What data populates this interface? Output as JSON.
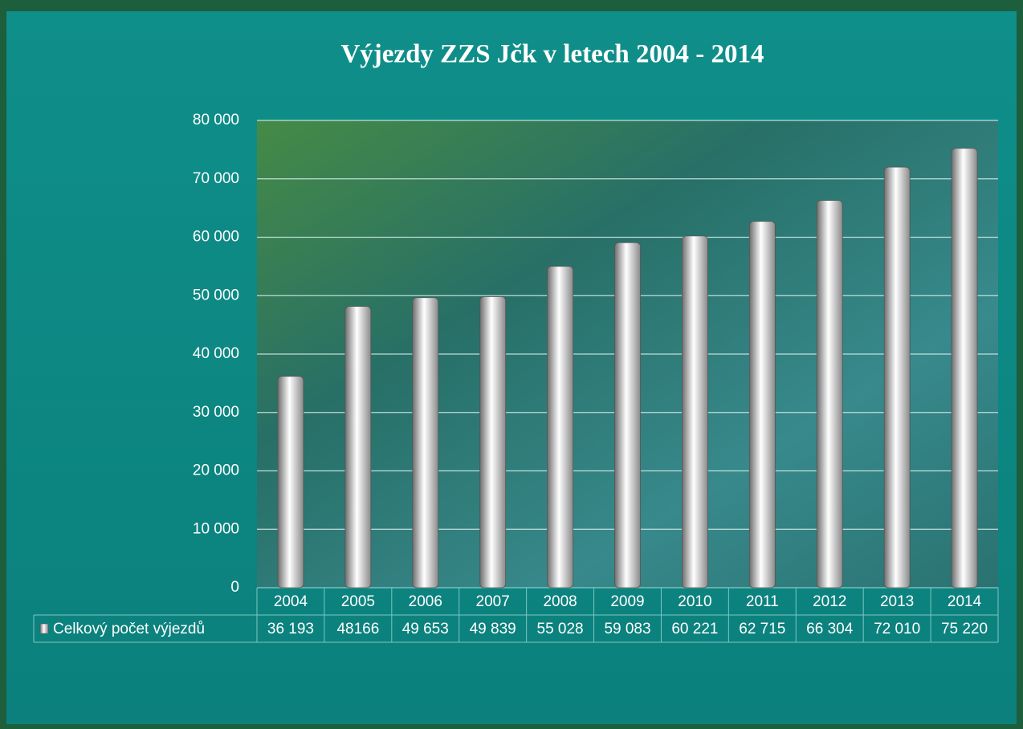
{
  "chart_data": {
    "type": "bar",
    "title": "Výjezdy ZZS  Jčk v letech 2004 - 2014",
    "categories": [
      "2004",
      "2005",
      "2006",
      "2007",
      "2008",
      "2009",
      "2010",
      "2011",
      "2012",
      "2013",
      "2014"
    ],
    "series": [
      {
        "name": "Celkový počet výjezdů",
        "color": "#d9d9d9",
        "values": [
          36193,
          48166,
          49653,
          49839,
          55028,
          59083,
          60221,
          62715,
          66304,
          72010,
          75220
        ],
        "value_labels": [
          "36 193",
          "48166",
          "49 653",
          "49 839",
          "55 028",
          "59 083",
          "60 221",
          "62 715",
          "66 304",
          "72 010",
          "75 220"
        ]
      }
    ],
    "ylim": [
      0,
      80000
    ],
    "yticks": [
      0,
      {
        "value": 10000,
        "label": "10 000"
      },
      {
        "value": 20000,
        "label": "20 000"
      },
      {
        "value": 30000,
        "label": "30 000"
      },
      {
        "value": 40000,
        "label": "40 000"
      },
      {
        "value": 50000,
        "label": "50 000"
      },
      {
        "value": 60000,
        "label": "60 000"
      },
      {
        "value": 70000,
        "label": "70 000"
      },
      {
        "value": 80000,
        "label": "80 000"
      }
    ],
    "grid": true
  }
}
